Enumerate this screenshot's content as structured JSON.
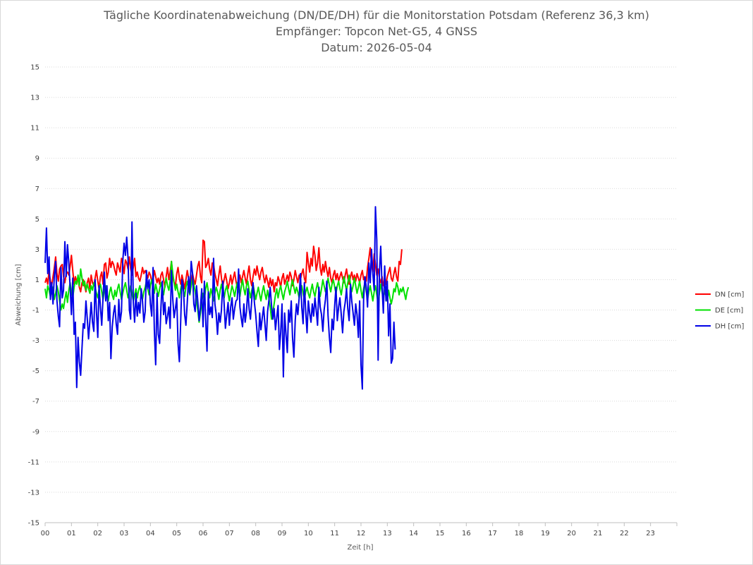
{
  "chart_data": {
    "type": "line",
    "title": "Tägliche Koordinatenabweichung (DN/DE/DH) für die Monitorstation Potsdam (Referenz 36,3 km)",
    "subtitle_1": "Empfänger: Topcon Net-G5, 4 GNSS",
    "subtitle_2": "Datum: 2026-05-04",
    "xlabel": "Zeit [h]",
    "ylabel": "Abweichung [cm]",
    "xlim": [
      0,
      24
    ],
    "ylim": [
      -15,
      15
    ],
    "x_ticks": [
      "00",
      "01",
      "02",
      "03",
      "04",
      "05",
      "06",
      "07",
      "08",
      "09",
      "10",
      "11",
      "12",
      "13",
      "14",
      "15",
      "16",
      "17",
      "18",
      "19",
      "20",
      "21",
      "22",
      "23"
    ],
    "y_ticks": [
      "15",
      "13",
      "11",
      "9",
      "7",
      "5",
      "3",
      "1",
      "-1",
      "-3",
      "-5",
      "-7",
      "-9",
      "-11",
      "-13",
      "-15"
    ],
    "y_tick_values": [
      15,
      13,
      11,
      9,
      7,
      5,
      3,
      1,
      -1,
      -3,
      -5,
      -7,
      -9,
      -11,
      -13,
      -15
    ],
    "grid": "horizontal-dotted",
    "legend_position": "right",
    "x_step_hours": 0.05,
    "series": [
      {
        "name": "DN [cm]",
        "color": "#ff0000",
        "values": [
          0.8,
          1.1,
          0.7,
          1.6,
          0.9,
          0.6,
          1.2,
          1.8,
          2.5,
          1.4,
          0.9,
          1.7,
          1.9,
          2.0,
          1.2,
          0.8,
          1.4,
          1.5,
          1.3,
          1.9,
          2.6,
          1.6,
          0.7,
          1.2,
          0.9,
          1.1,
          0.5,
          0.2,
          0.8,
          1.0,
          0.6,
          0.2,
          0.8,
          1.1,
          0.4,
          1.3,
          0.8,
          0.6,
          1.1,
          1.6,
          0.9,
          0.4,
          1.2,
          1.5,
          0.7,
          2.0,
          2.1,
          1.1,
          1.5,
          2.4,
          1.8,
          2.2,
          2.0,
          1.6,
          1.3,
          2.1,
          1.8,
          1.5,
          2.4,
          2.1,
          1.4,
          2.3,
          2.1,
          1.7,
          2.5,
          1.7,
          1.3,
          1.8,
          2.4,
          1.2,
          1.5,
          1.1,
          0.9,
          1.3,
          1.8,
          1.4,
          1.6,
          1.4,
          1.1,
          1.5,
          1.3,
          0.9,
          1.0,
          1.6,
          1.2,
          0.8,
          1.1,
          0.7,
          1.3,
          1.5,
          1.0,
          0.5,
          1.2,
          1.8,
          1.0,
          1.5,
          2.2,
          1.1,
          0.8,
          0.6,
          1.4,
          1.8,
          1.1,
          0.7,
          1.3,
          0.9,
          0.4,
          1.0,
          1.6,
          1.1,
          0.5,
          0.9,
          1.4,
          1.0,
          0.7,
          1.3,
          1.9,
          2.2,
          1.2,
          0.8,
          3.6,
          3.5,
          1.8,
          2.0,
          2.4,
          1.7,
          1.3,
          2.1,
          2.0,
          1.4,
          1.0,
          0.6,
          1.3,
          1.9,
          1.1,
          0.6,
          1.0,
          1.4,
          0.9,
          0.4,
          0.8,
          1.3,
          0.7,
          1.1,
          1.5,
          0.9,
          0.5,
          1.0,
          1.3,
          0.8,
          1.2,
          1.6,
          1.1,
          0.7,
          1.4,
          1.9,
          1.0,
          0.6,
          1.2,
          1.7,
          1.3,
          1.9,
          1.4,
          1.0,
          1.5,
          1.8,
          1.2,
          0.8,
          1.3,
          0.9,
          0.5,
          1.1,
          0.6,
          1.0,
          0.2,
          0.8,
          0.6,
          1.2,
          0.9,
          0.5,
          1.1,
          1.4,
          0.7,
          1.0,
          1.3,
          0.9,
          1.5,
          1.2,
          0.6,
          1.0,
          1.6,
          1.2,
          0.8,
          1.3,
          1.0,
          1.4,
          1.7,
          1.1,
          0.8,
          2.8,
          2.1,
          1.5,
          2.4,
          1.9,
          3.2,
          2.6,
          1.6,
          2.1,
          3.1,
          1.8,
          1.3,
          2.0,
          1.5,
          2.2,
          1.6,
          1.2,
          1.8,
          1.1,
          0.8,
          1.3,
          1.6,
          1.0,
          1.4,
          0.9,
          1.2,
          1.5,
          1.1,
          0.8,
          1.3,
          1.7,
          1.1,
          0.7,
          1.2,
          1.5,
          1.0,
          1.3,
          0.9,
          1.4,
          1.1,
          0.8,
          1.3,
          1.6,
          1.0,
          1.2,
          0.9,
          1.8,
          2.4,
          3.1,
          2.0,
          1.5,
          2.7,
          2.0,
          1.3,
          1.7,
          1.1,
          0.8,
          1.2,
          0.6,
          1.0,
          0.7,
          1.2,
          1.5,
          1.8,
          1.1,
          0.9,
          1.4,
          1.8,
          1.2,
          0.9,
          2.2,
          2.0,
          3.0
        ]
      },
      {
        "name": "DE [cm]",
        "color": "#00e000",
        "values": [
          0.4,
          -0.2,
          0.6,
          0.3,
          -0.1,
          0.2,
          0.5,
          -0.3,
          0.1,
          0.6,
          0.2,
          -0.4,
          -1.0,
          -0.6,
          -0.9,
          -0.3,
          0.2,
          -0.5,
          0.3,
          0.8,
          0.1,
          -0.2,
          0.5,
          0.9,
          0.7,
          1.3,
          0.6,
          1.7,
          1.1,
          0.6,
          0.9,
          0.3,
          0.7,
          0.4,
          0.1,
          0.6,
          0.3,
          0.8,
          0.5,
          0.1,
          -0.2,
          0.4,
          0.7,
          0.2,
          -0.3,
          0.3,
          0.6,
          0.1,
          -0.4,
          0.2,
          0.5,
          0.0,
          -0.3,
          0.3,
          -0.1,
          0.4,
          0.7,
          0.2,
          -0.3,
          0.1,
          0.5,
          0.8,
          0.3,
          -0.2,
          0.2,
          0.6,
          0.1,
          -0.4,
          0.0,
          0.4,
          -0.2,
          0.3,
          0.6,
          0.1,
          -0.3,
          0.2,
          0.5,
          0.9,
          0.4,
          0.0,
          0.6,
          1.0,
          0.5,
          0.1,
          0.7,
          0.3,
          -0.1,
          0.4,
          0.8,
          0.4,
          0.0,
          0.6,
          1.1,
          0.6,
          0.3,
          0.9,
          2.2,
          1.4,
          0.8,
          0.3,
          0.7,
          0.2,
          -0.2,
          0.4,
          0.8,
          0.3,
          -0.1,
          0.5,
          0.9,
          0.4,
          0.0,
          0.6,
          1.1,
          0.7,
          0.2,
          -0.4,
          -1.0,
          -1.8,
          -1.2,
          -0.5,
          0.1,
          -0.3,
          0.4,
          0.8,
          0.2,
          -0.2,
          0.4,
          0.0,
          -0.4,
          0.1,
          0.5,
          0.2,
          -0.3,
          0.3,
          0.7,
          0.2,
          -0.2,
          0.3,
          0.6,
          0.1,
          -0.4,
          0.1,
          0.6,
          0.3,
          -0.1,
          0.4,
          0.8,
          0.3,
          -0.1,
          0.5,
          1.0,
          0.4,
          0.0,
          0.6,
          0.9,
          0.3,
          -0.2,
          0.3,
          0.7,
          0.2,
          -0.3,
          0.1,
          0.5,
          0.0,
          -0.4,
          0.2,
          0.6,
          0.1,
          -0.3,
          0.3,
          -0.2,
          -0.8,
          -1.6,
          -1.2,
          -0.6,
          0.0,
          0.4,
          -0.2,
          0.3,
          0.6,
          0.1,
          -0.3,
          0.2,
          0.5,
          0.9,
          0.4,
          0.0,
          0.6,
          1.0,
          0.5,
          0.1,
          0.5,
          0.2,
          -0.2,
          0.3,
          0.6,
          0.1,
          -0.3,
          0.2,
          0.5,
          0.1,
          -0.2,
          0.3,
          0.7,
          0.2,
          -0.1,
          0.4,
          0.8,
          0.3,
          -0.1,
          0.4,
          1.0,
          0.6,
          0.2,
          0.6,
          1.1,
          0.6,
          0.2,
          0.7,
          1.0,
          0.5,
          0.1,
          0.6,
          0.9,
          0.4,
          0.0,
          0.6,
          1.2,
          0.7,
          0.3,
          0.8,
          1.3,
          0.7,
          0.2,
          0.6,
          1.1,
          0.6,
          0.1,
          0.5,
          0.9,
          0.3,
          -0.2,
          0.4,
          0.8,
          0.2,
          -0.3,
          0.2,
          0.6,
          0.1,
          -0.4,
          0.2,
          0.6,
          0.0,
          -0.5,
          0.1,
          0.7,
          0.2,
          -0.3,
          0.3,
          -0.1,
          -0.4,
          0.3,
          -0.2,
          -0.6,
          -0.2,
          0.4,
          0.2,
          0.8,
          0.5,
          0.0,
          0.4,
          0.2,
          0.5,
          0.1,
          -0.3,
          0.2,
          0.5
        ]
      },
      {
        "name": "DH [cm]",
        "color": "#0000e6",
        "values": [
          2.1,
          4.4,
          1.4,
          2.5,
          -0.3,
          0.8,
          -0.6,
          1.3,
          2.2,
          -0.4,
          -1.4,
          -2.1,
          1.8,
          -0.2,
          0.3,
          3.5,
          1.2,
          3.3,
          2.1,
          0.5,
          -1.3,
          1.1,
          -2.6,
          -1.8,
          -6.1,
          -2.8,
          -4.4,
          -5.3,
          -3.5,
          -1.9,
          -2.2,
          -0.4,
          -1.5,
          -2.9,
          -1.7,
          -0.5,
          -1.8,
          -2.4,
          1.0,
          -1.1,
          -2.8,
          0.6,
          -0.8,
          -2.0,
          -0.2,
          1.5,
          -0.4,
          0.6,
          -1.7,
          -0.5,
          -4.2,
          -2.1,
          -1.2,
          -0.7,
          -1.9,
          -2.6,
          -0.3,
          -1.8,
          -1.1,
          2.2,
          3.4,
          2.6,
          3.8,
          2.4,
          -1.0,
          -1.6,
          4.8,
          -0.5,
          -1.8,
          0.1,
          -1.4,
          -0.5,
          -1.2,
          0.4,
          -0.4,
          -1.8,
          -1.1,
          1.6,
          0.4,
          1.0,
          -0.6,
          -1.4,
          1.8,
          -2.3,
          -4.6,
          0.1,
          -2.6,
          -3.2,
          -0.8,
          0.9,
          -1.3,
          -0.5,
          -1.9,
          -1.4,
          -0.8,
          -2.2,
          1.6,
          -0.3,
          -1.5,
          -0.9,
          -0.2,
          -3.2,
          -4.4,
          -1.7,
          1.0,
          0.6,
          -1.3,
          -2.0,
          -0.5,
          1.2,
          0.1,
          2.2,
          1.4,
          -0.6,
          -1.1,
          0.6,
          -0.4,
          -1.7,
          -0.8,
          0.4,
          -2.1,
          0.9,
          -1.6,
          -3.7,
          0.2,
          -1.3,
          -0.8,
          -1.5,
          2.4,
          -0.6,
          -1.3,
          -2.6,
          -1.2,
          -1.8,
          -1.0,
          0.9,
          -0.6,
          -2.2,
          -1.3,
          -0.5,
          -2.0,
          -0.8,
          -0.2,
          -1.6,
          -0.9,
          -0.4,
          -0.3,
          1.7,
          -0.8,
          -1.5,
          -2.1,
          -0.6,
          -1.8,
          -1.1,
          0.4,
          -0.9,
          -1.6,
          -0.3,
          0.8,
          -0.5,
          -1.3,
          -2.4,
          -3.4,
          -1.2,
          -2.3,
          -1.5,
          -0.8,
          -1.9,
          -3.0,
          -1.1,
          -0.4,
          0.5,
          -0.7,
          -1.6,
          -0.9,
          -2.3,
          -1.5,
          -0.7,
          -3.6,
          -2.5,
          -0.6,
          -5.4,
          -1.2,
          -2.6,
          -3.8,
          -1.0,
          -1.8,
          -0.4,
          -2.8,
          -4.1,
          -1.7,
          -0.6,
          -1.3,
          -0.2,
          1.4,
          -0.8,
          -1.9,
          0.8,
          -1.1,
          -2.5,
          -0.4,
          -1.2,
          -1.8,
          -0.6,
          -1.4,
          -0.2,
          -1.0,
          -2.0,
          0.5,
          -0.8,
          -1.3,
          -2.4,
          -1.0,
          -0.3,
          0.9,
          -1.4,
          -2.8,
          -3.8,
          -1.6,
          -2.3,
          -0.7,
          0.5,
          -1.7,
          -0.8,
          -0.2,
          -1.3,
          -2.5,
          -1.1,
          -0.5,
          0.4,
          -0.9,
          -1.7,
          0.7,
          -0.4,
          -1.2,
          -2.0,
          -0.6,
          -1.3,
          -2.8,
          -0.4,
          -4.6,
          -6.2,
          -0.3,
          1.2,
          0.5,
          -0.8,
          2.1,
          0.8,
          3.0,
          1.4,
          0.3,
          5.8,
          3.6,
          -4.3,
          1.5,
          3.2,
          0.5,
          -1.2,
          1.9,
          -0.4,
          0.9,
          -2.7,
          -0.6,
          -4.5,
          -4.2,
          -1.8,
          -3.6
        ]
      }
    ]
  }
}
